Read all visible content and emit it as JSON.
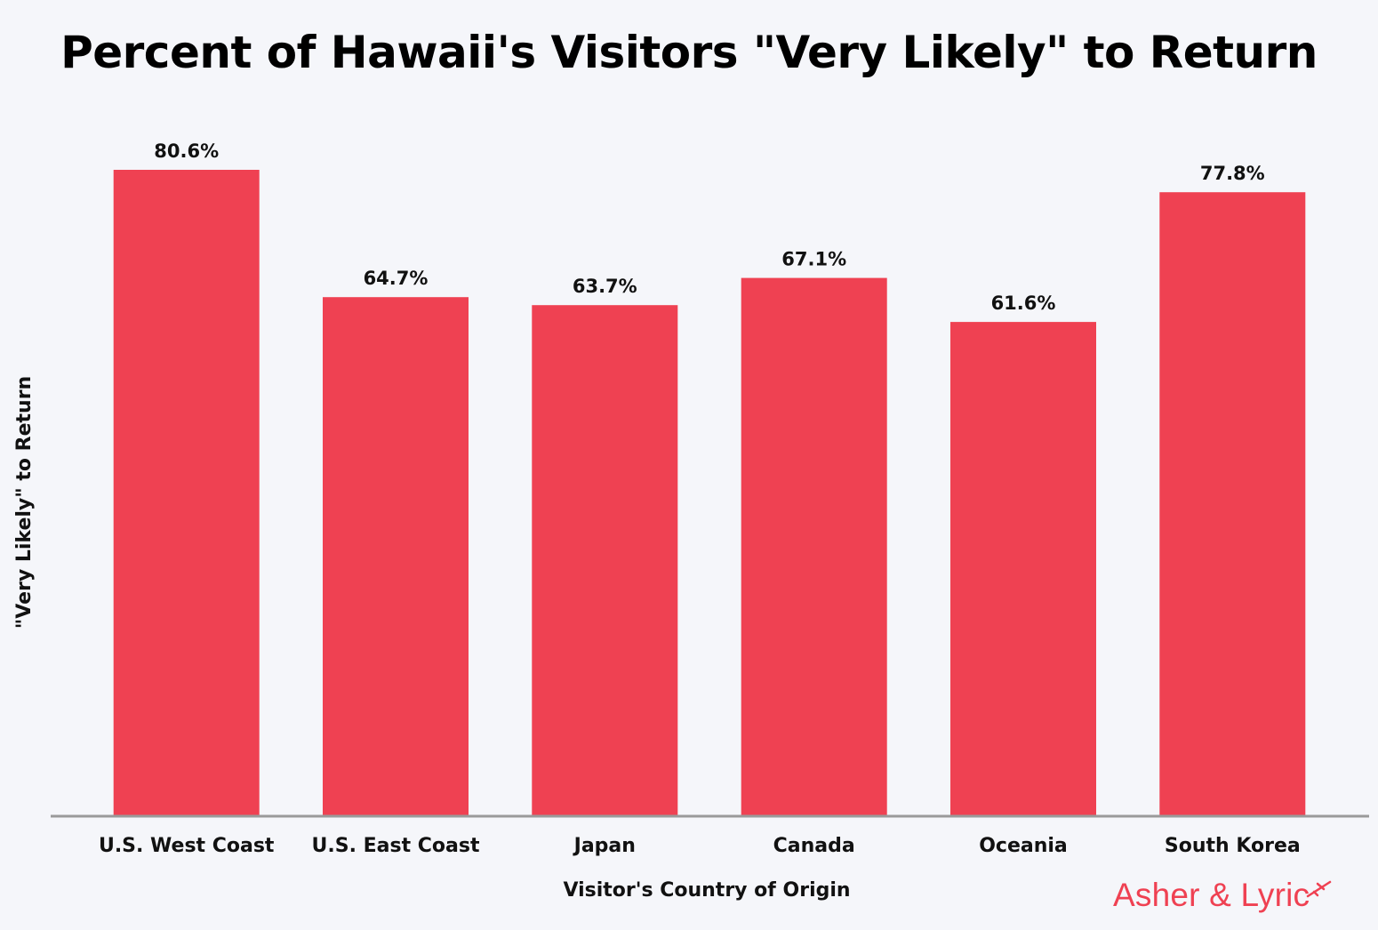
{
  "chart_data": {
    "type": "bar",
    "title": "Percent of Hawaii's Visitors \"Very Likely\" to Return",
    "xlabel": "Visitor's Country of Origin",
    "ylabel": "\"Very Likely\" to Return",
    "categories": [
      "U.S. West Coast",
      "U.S. East Coast",
      "Japan",
      "Canada",
      "Oceania",
      "South Korea"
    ],
    "values": [
      80.6,
      64.7,
      63.7,
      67.1,
      61.6,
      77.8
    ],
    "value_labels": [
      "80.6%",
      "64.7%",
      "63.7%",
      "67.1%",
      "61.6%",
      "77.8%"
    ],
    "ylim": [
      0,
      80.6
    ],
    "grid": false,
    "legend": "none",
    "bar_color": "#ef4152",
    "axis_color": "#9a9a9a"
  },
  "brand": {
    "name": "Asher & Lyric",
    "color": "#ef4152",
    "icon": "airplane-icon"
  }
}
